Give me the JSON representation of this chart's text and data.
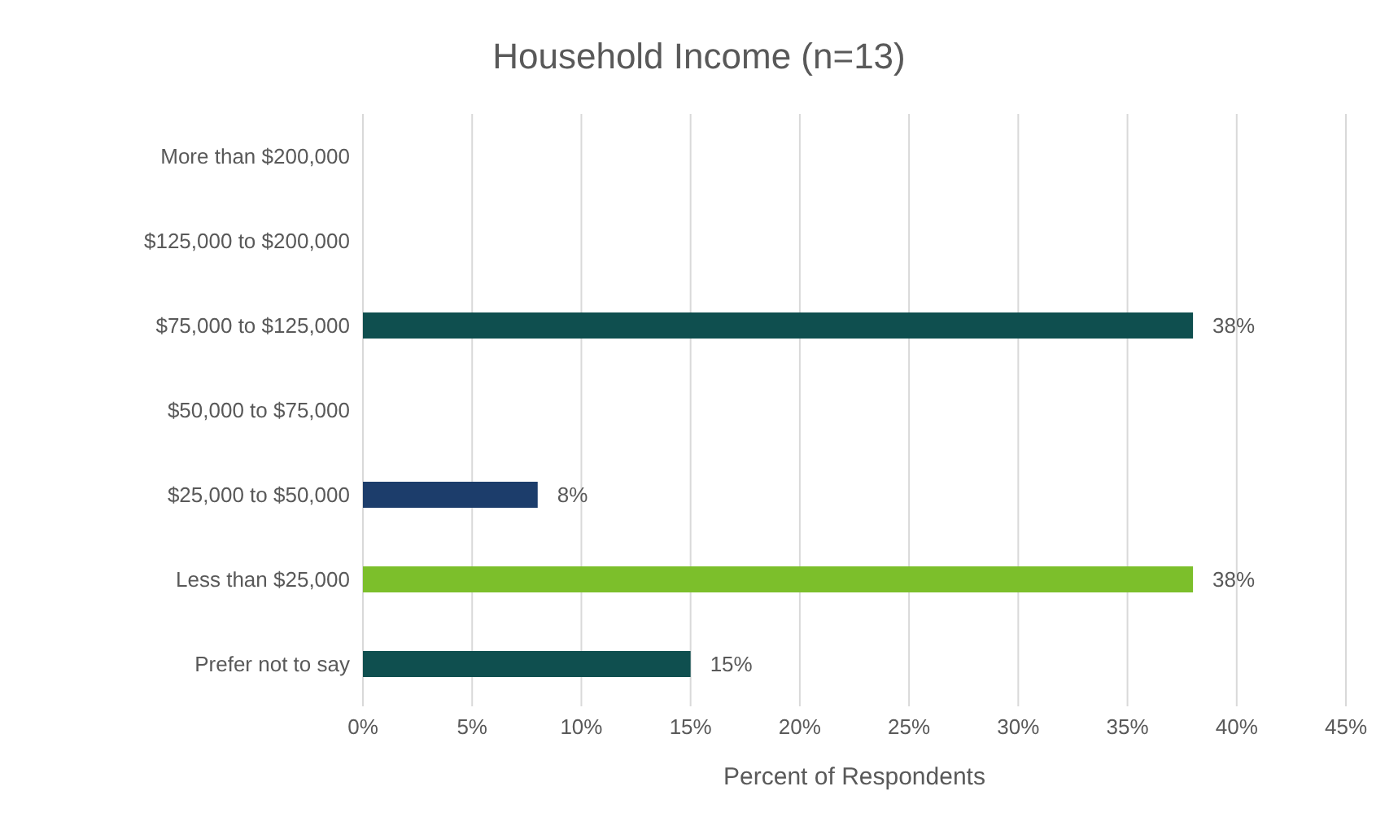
{
  "chart_data": {
    "type": "bar",
    "orientation": "horizontal",
    "title": "Household Income (n=13)",
    "xlabel": "Percent of Respondents",
    "categories": [
      "More than $200,000",
      "$125,000 to $200,000",
      "$75,000 to $125,000",
      "$50,000 to $75,000",
      "$25,000 to $50,000",
      "Less than $25,000",
      "Prefer not to say"
    ],
    "values": [
      0,
      0,
      38,
      0,
      8,
      38,
      15
    ],
    "colors": [
      "#0f4f4f",
      "#0f4f4f",
      "#0f4f4f",
      "#0f4f4f",
      "#1c3d6b",
      "#7cbf2b",
      "#0f4f4f"
    ],
    "value_labels": [
      null,
      null,
      "38%",
      null,
      "8%",
      "38%",
      "15%"
    ],
    "xlim": [
      0,
      45
    ],
    "xticks": [
      {
        "value": 0,
        "label": "0%"
      },
      {
        "value": 5,
        "label": "5%"
      },
      {
        "value": 10,
        "label": "10%"
      },
      {
        "value": 15,
        "label": "15%"
      },
      {
        "value": 20,
        "label": "20%"
      },
      {
        "value": 25,
        "label": "25%"
      },
      {
        "value": 30,
        "label": "30%"
      },
      {
        "value": 35,
        "label": "35%"
      },
      {
        "value": 40,
        "label": "40%"
      },
      {
        "value": 45,
        "label": "45%"
      }
    ],
    "grid": "x",
    "legend": false
  }
}
